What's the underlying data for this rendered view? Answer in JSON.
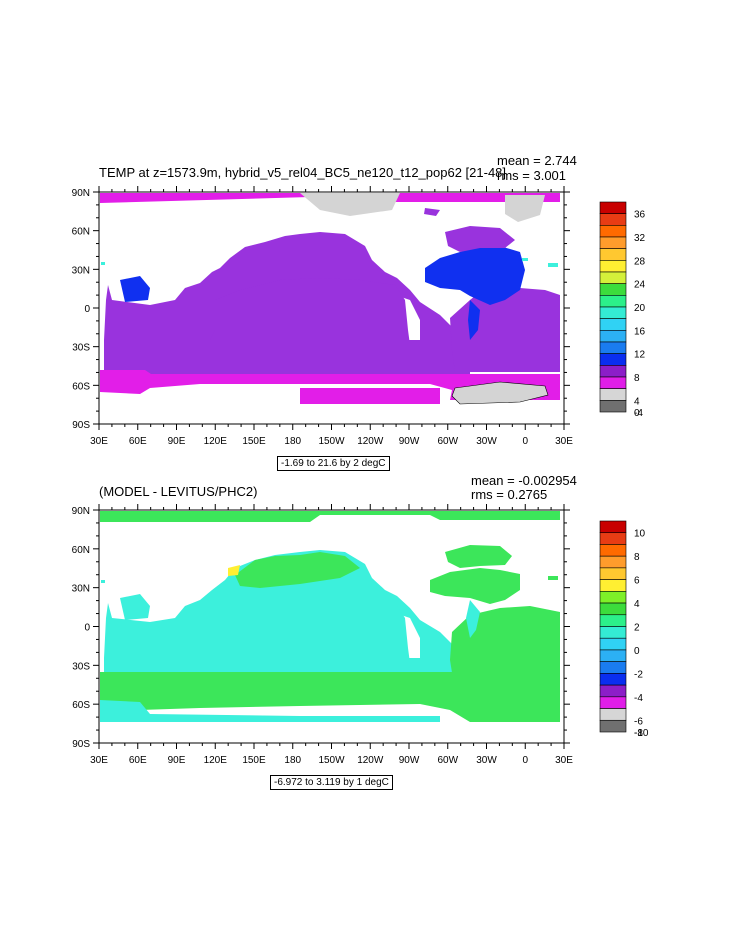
{
  "panels": [
    {
      "title": "TEMP at z=1573.9m, hybrid_v5_rel04_BC5_ne120_t12_pop62 [21-48]",
      "mean": "mean = 2.744",
      "rms": "rms = 3.001",
      "range_label": "-1.69 to 21.6 by 2 degC",
      "lat_labels": [
        "90N",
        "60N",
        "30N",
        "0",
        "30S",
        "60S",
        "90S"
      ],
      "lon_labels": [
        "30E",
        "60E",
        "90E",
        "120E",
        "150E",
        "180",
        "150W",
        "120W",
        "90W",
        "60W",
        "30W",
        "0",
        "30E"
      ],
      "colorbar": {
        "labels": [
          "36",
          "32",
          "28",
          "24",
          "20",
          "16",
          "12",
          "8",
          "4",
          "0",
          "-4"
        ],
        "colors": [
          "#c80000",
          "#e83c14",
          "#ff6a00",
          "#ff9c2c",
          "#ffc830",
          "#ffef32",
          "#d4f03a",
          "#3cdc3c",
          "#2cf08a",
          "#34ecd4",
          "#30d2f4",
          "#2cb0f4",
          "#1a7cf0",
          "#0a2ef0",
          "#8c1ec8",
          "#e01ee8",
          "#d6d6d6",
          "#707070"
        ]
      }
    },
    {
      "title": "(MODEL - LEVITUS/PHC2)",
      "mean": "mean = -0.002954",
      "rms": "rms = 0.2765",
      "range_label": "-6.972 to 3.119 by 1 degC",
      "lat_labels": [
        "90N",
        "60N",
        "30N",
        "0",
        "30S",
        "60S",
        "90S"
      ],
      "lon_labels": [
        "30E",
        "60E",
        "90E",
        "120E",
        "150E",
        "180",
        "150W",
        "120W",
        "90W",
        "60W",
        "30W",
        "0",
        "30E"
      ],
      "colorbar": {
        "labels": [
          "10",
          "8",
          "6",
          "4",
          "2",
          "0",
          "-2",
          "-4",
          "-6",
          "-8",
          "-10"
        ],
        "colors": [
          "#c80000",
          "#e83c14",
          "#ff6a00",
          "#ff9c2c",
          "#ffc830",
          "#ffef32",
          "#7ef028",
          "#3cdc3c",
          "#2cf08a",
          "#34ecd4",
          "#30d2f4",
          "#2cb0f4",
          "#1a7cf0",
          "#0a2ef0",
          "#8c1ec8",
          "#e01ee8",
          "#d6d6d6",
          "#707070"
        ]
      }
    }
  ],
  "colors": {
    "deep_purple": "#9933dd",
    "magenta": "#e21ee8",
    "blue": "#1030f0",
    "gray": "#d4d4d4",
    "cyan": "#3cf0dc",
    "green": "#3ce65a",
    "land": "#ffffff"
  }
}
